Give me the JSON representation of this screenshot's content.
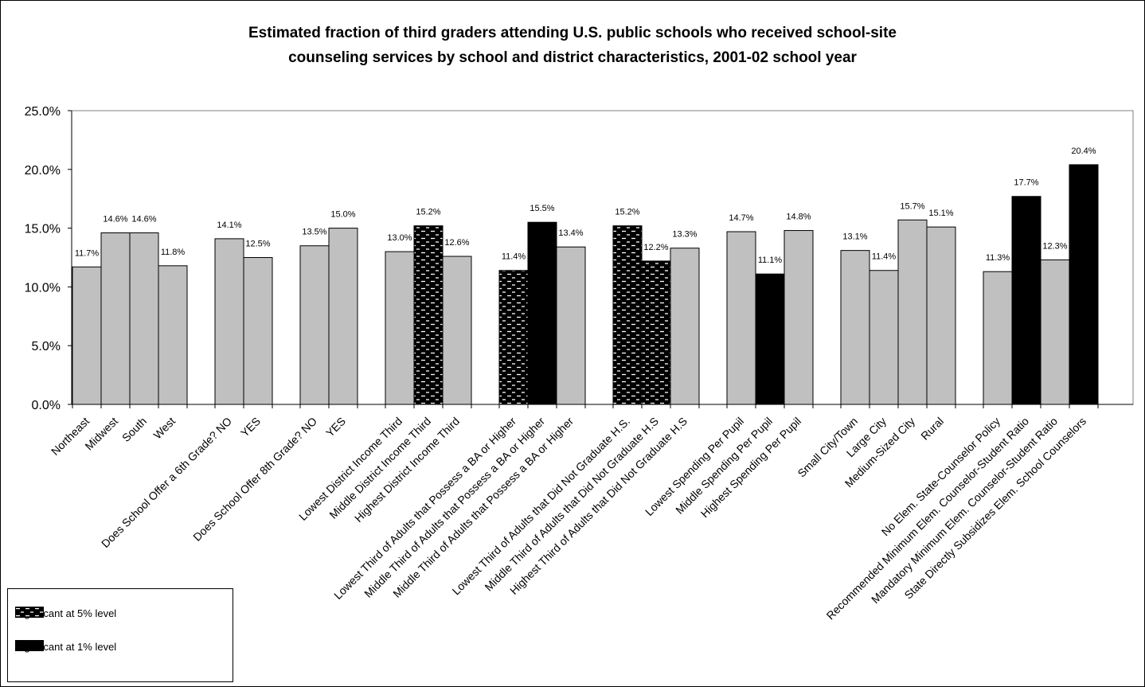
{
  "chart_data": {
    "type": "bar",
    "title": "Estimated fraction of third graders attending U.S. public schools who received school-site counseling services by school and district characteristics, 2001-02 school year",
    "title_lines": [
      "Estimated fraction of third graders attending U.S. public schools who received school-site",
      "counseling services by school and district characteristics, 2001-02 school year"
    ],
    "ylim": [
      0,
      25
    ],
    "y_ticks": [
      "0.0%",
      "5.0%",
      "10.0%",
      "15.0%",
      "20.0%",
      "25.0%"
    ],
    "grid": false,
    "legend_position": "bottom-left",
    "colors": {
      "default": "#c0c0c0",
      "sig5": "pattern-black-white-dashes",
      "sig1": "#000000"
    },
    "groups": [
      [
        {
          "label": "Northeast",
          "value": 11.7,
          "value_label": "11.7%",
          "sig": "none"
        },
        {
          "label": "Midwest",
          "value": 14.6,
          "value_label": "14.6%",
          "sig": "none"
        },
        {
          "label": "South",
          "value": 14.6,
          "value_label": "14.6%",
          "sig": "none"
        },
        {
          "label": "West",
          "value": 11.8,
          "value_label": "11.8%",
          "sig": "none"
        }
      ],
      [
        {
          "label": "Does School Offer a 6th Grade?  NO",
          "value": 14.1,
          "value_label": "14.1%",
          "sig": "none"
        },
        {
          "label": "YES",
          "value": 12.5,
          "value_label": "12.5%",
          "sig": "none"
        }
      ],
      [
        {
          "label": "Does School Offer 8th Grade?  NO",
          "value": 13.5,
          "value_label": "13.5%",
          "sig": "none"
        },
        {
          "label": "YES",
          "value": 15.0,
          "value_label": "15.0%",
          "sig": "none"
        }
      ],
      [
        {
          "label": "Lowest District Income Third",
          "value": 13.0,
          "value_label": "13.0%",
          "sig": "none"
        },
        {
          "label": "Middle District Income Third",
          "value": 15.2,
          "value_label": "15.2%",
          "sig": "5"
        },
        {
          "label": "Highest District Income Third",
          "value": 12.6,
          "value_label": "12.6%",
          "sig": "none"
        }
      ],
      [
        {
          "label": "Lowest Third of Adults that Possess a BA or Higher",
          "value": 11.4,
          "value_label": "11.4%",
          "sig": "5"
        },
        {
          "label": "Middle Third of Adults that Possess a BA or Higher",
          "value": 15.5,
          "value_label": "15.5%",
          "sig": "1"
        },
        {
          "label": "Middle Third of Adults that Possess a BA or Higher",
          "value": 13.4,
          "value_label": "13.4%",
          "sig": "none"
        }
      ],
      [
        {
          "label": "Lowest Third of Adults that Did Not Graduate H.S.",
          "value": 15.2,
          "value_label": "15.2%",
          "sig": "5"
        },
        {
          "label": "Middle Third of Adults that Did Not Graduate H.S",
          "value": 12.2,
          "value_label": "12.2%",
          "sig": "5"
        },
        {
          "label": "Highest Third of Adults that Did Not Graduate H.S",
          "value": 13.3,
          "value_label": "13.3%",
          "sig": "none"
        }
      ],
      [
        {
          "label": "Lowest Spending Per Pupil",
          "value": 14.7,
          "value_label": "14.7%",
          "sig": "none"
        },
        {
          "label": "Middle Spending Per Pupil",
          "value": 11.1,
          "value_label": "11.1%",
          "sig": "1"
        },
        {
          "label": "Highest Spending Per Pupil",
          "value": 14.8,
          "value_label": "14.8%",
          "sig": "none"
        }
      ],
      [
        {
          "label": "Small City/Town",
          "value": 13.1,
          "value_label": "13.1%",
          "sig": "none"
        },
        {
          "label": "Large City",
          "value": 11.4,
          "value_label": "11.4%",
          "sig": "none"
        },
        {
          "label": "Medium-Sized City",
          "value": 15.7,
          "value_label": "15.7%",
          "sig": "none"
        },
        {
          "label": "Rural",
          "value": 15.1,
          "value_label": "15.1%",
          "sig": "none"
        }
      ],
      [
        {
          "label": "No Elem. State-Counselor Policy",
          "value": 11.3,
          "value_label": "11.3%",
          "sig": "none"
        },
        {
          "label": "Recommended Minimum Elem. Counselor-Student Ratio",
          "value": 17.7,
          "value_label": "17.7%",
          "sig": "1"
        },
        {
          "label": "Mandatory Minimum Elem. Counselor-Student Ratio",
          "value": 12.3,
          "value_label": "12.3%",
          "sig": "none"
        },
        {
          "label": "State Directly Subsidizes Elem. School Counselors",
          "value": 20.4,
          "value_label": "20.4%",
          "sig": "1"
        }
      ]
    ],
    "legend": [
      {
        "key": "sig5",
        "label": "Significant at 5% level"
      },
      {
        "key": "sig1",
        "label": "Significant at 1% level"
      }
    ]
  }
}
